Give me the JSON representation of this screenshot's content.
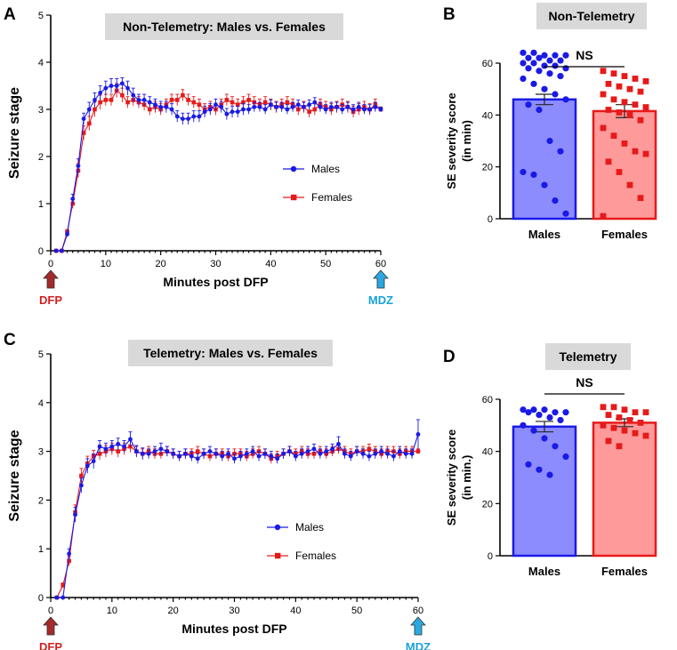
{
  "colors": {
    "males": "#1a1ae6",
    "females": "#e61a1a",
    "males_bar_fill": "#8c8cff",
    "females_bar_fill": "#ff9a9a",
    "dfp_arrow": "#a52a2a",
    "mdz_arrow": "#29a9e0",
    "dfp_text": "#d0211f",
    "mdz_text": "#1aa3d9"
  },
  "chart_data": [
    {
      "panel": "A",
      "type": "line",
      "title": "Non-Telemetry: Males vs. Females",
      "xlabel": "Minutes post DFP",
      "ylabel": "Seizure stage",
      "xlim": [
        0,
        60
      ],
      "ylim": [
        0,
        5
      ],
      "xticks": [
        0,
        10,
        20,
        30,
        40,
        50,
        60
      ],
      "yticks": [
        0,
        1,
        2,
        3,
        4,
        5
      ],
      "legend": [
        "Males",
        "Females"
      ],
      "markers": {
        "start": "DFP",
        "end": "MDZ"
      },
      "series": [
        {
          "name": "Males",
          "x": [
            1,
            2,
            3,
            4,
            5,
            6,
            7,
            8,
            9,
            10,
            11,
            12,
            13,
            14,
            15,
            16,
            17,
            18,
            19,
            20,
            21,
            22,
            23,
            24,
            25,
            26,
            27,
            28,
            29,
            30,
            31,
            32,
            33,
            34,
            35,
            36,
            37,
            38,
            39,
            40,
            41,
            42,
            43,
            44,
            45,
            46,
            47,
            48,
            49,
            50,
            51,
            52,
            53,
            54,
            55,
            56,
            57,
            58,
            59,
            60
          ],
          "values": [
            0,
            0,
            0.35,
            1.1,
            1.8,
            2.8,
            3.0,
            3.2,
            3.35,
            3.45,
            3.5,
            3.5,
            3.55,
            3.45,
            3.3,
            3.2,
            3.2,
            3.15,
            3.1,
            3.05,
            3.05,
            3.0,
            2.85,
            2.8,
            2.8,
            2.85,
            2.85,
            2.95,
            3.0,
            3.1,
            3.05,
            2.9,
            2.95,
            2.95,
            3.0,
            3.0,
            3.05,
            3.05,
            3.0,
            3.1,
            3.05,
            3.05,
            3.0,
            3.05,
            3.1,
            3.05,
            3.1,
            3.15,
            3.05,
            3.0,
            3.05,
            3.05,
            3.0,
            3.05,
            3.0,
            3.05,
            3.0,
            3.0,
            3.05,
            3.0
          ],
          "errors": [
            0,
            0,
            0.05,
            0.1,
            0.15,
            0.12,
            0.15,
            0.15,
            0.15,
            0.15,
            0.15,
            0.15,
            0.12,
            0.15,
            0.15,
            0.12,
            0.12,
            0.12,
            0.12,
            0.12,
            0.12,
            0.12,
            0.12,
            0.12,
            0.12,
            0.12,
            0.12,
            0.12,
            0.12,
            0.12,
            0.12,
            0.12,
            0.12,
            0.12,
            0.12,
            0.1,
            0.1,
            0.1,
            0.1,
            0.1,
            0.1,
            0.1,
            0.1,
            0.1,
            0.1,
            0.1,
            0.1,
            0.1,
            0.1,
            0.1,
            0.1,
            0.1,
            0.1,
            0.1,
            0.1,
            0.1,
            0.1,
            0.1,
            0.1,
            0.05
          ]
        },
        {
          "name": "Females",
          "x": [
            1,
            2,
            3,
            4,
            5,
            6,
            7,
            8,
            9,
            10,
            11,
            12,
            13,
            14,
            15,
            16,
            17,
            18,
            19,
            20,
            21,
            22,
            23,
            24,
            25,
            26,
            27,
            28,
            29,
            30,
            31,
            32,
            33,
            34,
            35,
            36,
            37,
            38,
            39,
            40,
            41,
            42,
            43,
            44,
            45,
            46,
            47,
            48,
            49,
            50,
            51,
            52,
            53,
            54,
            55,
            56,
            57,
            58,
            59,
            60
          ],
          "values": [
            0,
            0,
            0.4,
            1.0,
            1.7,
            2.5,
            2.7,
            3.0,
            3.15,
            3.2,
            3.2,
            3.4,
            3.3,
            3.15,
            3.2,
            3.15,
            3.1,
            3.0,
            3.05,
            3.0,
            3.1,
            3.2,
            3.2,
            3.3,
            3.2,
            3.15,
            3.1,
            3.0,
            3.05,
            3.0,
            3.1,
            3.2,
            3.15,
            3.1,
            3.15,
            3.2,
            3.15,
            3.1,
            3.15,
            3.1,
            3.05,
            3.1,
            3.15,
            3.1,
            3.0,
            3.05,
            2.95,
            3.0,
            3.1,
            3.05,
            3.0,
            3.05,
            3.1,
            3.05,
            2.95,
            3.0,
            3.05,
            3.0,
            3.1,
            3.0
          ],
          "errors": [
            0,
            0,
            0.05,
            0.1,
            0.15,
            0.15,
            0.15,
            0.15,
            0.15,
            0.12,
            0.12,
            0.15,
            0.15,
            0.12,
            0.12,
            0.12,
            0.12,
            0.12,
            0.12,
            0.12,
            0.12,
            0.12,
            0.12,
            0.12,
            0.12,
            0.12,
            0.12,
            0.12,
            0.12,
            0.12,
            0.12,
            0.12,
            0.12,
            0.12,
            0.12,
            0.12,
            0.12,
            0.12,
            0.12,
            0.12,
            0.12,
            0.12,
            0.12,
            0.12,
            0.12,
            0.12,
            0.12,
            0.12,
            0.12,
            0.12,
            0.12,
            0.12,
            0.12,
            0.12,
            0.12,
            0.12,
            0.12,
            0.12,
            0.12,
            0.05
          ]
        }
      ]
    },
    {
      "panel": "B",
      "type": "bar",
      "title": "Non-Telemetry",
      "ylabel": "SE severity score\n(in min)",
      "ylim": [
        0,
        60
      ],
      "yticks": [
        0,
        20,
        40,
        60
      ],
      "categories": [
        "Males",
        "Females"
      ],
      "values": [
        46,
        41.5
      ],
      "errors": [
        2,
        2.5
      ],
      "annotation": "NS",
      "points": [
        [
          64,
          64,
          63,
          63,
          63,
          62,
          62,
          61,
          61,
          60,
          60,
          59,
          59,
          58,
          58,
          57,
          56,
          55,
          54,
          52,
          50,
          48,
          46,
          44,
          42,
          30,
          26,
          18,
          17,
          13,
          7,
          2
        ],
        [
          57,
          56,
          55,
          54,
          53,
          52,
          51,
          50,
          49,
          48,
          46,
          45,
          44,
          43,
          42,
          41,
          40,
          38,
          35,
          32,
          29,
          26,
          25,
          22,
          18,
          13,
          8,
          1
        ]
      ]
    },
    {
      "panel": "C",
      "type": "line",
      "title": "Telemetry: Males vs. Females",
      "xlabel": "Minutes post DFP",
      "ylabel": "Seizure stage",
      "xlim": [
        0,
        60
      ],
      "ylim": [
        0,
        5
      ],
      "xticks": [
        0,
        10,
        20,
        30,
        40,
        50,
        60
      ],
      "yticks": [
        0,
        1,
        2,
        3,
        4,
        5
      ],
      "legend": [
        "Males",
        "Females"
      ],
      "markers": {
        "start": "DFP",
        "end": "MDZ"
      },
      "series": [
        {
          "name": "Males",
          "x": [
            1,
            2,
            3,
            4,
            5,
            6,
            7,
            8,
            9,
            10,
            11,
            12,
            13,
            14,
            15,
            16,
            17,
            18,
            19,
            20,
            21,
            22,
            23,
            24,
            25,
            26,
            27,
            28,
            29,
            30,
            31,
            32,
            33,
            34,
            35,
            36,
            37,
            38,
            39,
            40,
            41,
            42,
            43,
            44,
            45,
            46,
            47,
            48,
            49,
            50,
            51,
            52,
            53,
            54,
            55,
            56,
            57,
            58,
            59,
            60
          ],
          "values": [
            0,
            0,
            0.9,
            1.7,
            2.3,
            2.7,
            2.8,
            3.1,
            3.05,
            3.1,
            3.15,
            3.1,
            3.25,
            3.0,
            2.95,
            2.95,
            3.0,
            3.05,
            3.0,
            2.95,
            2.9,
            2.95,
            2.9,
            2.85,
            2.95,
            3.0,
            2.95,
            2.9,
            2.95,
            2.85,
            2.9,
            2.95,
            3.0,
            2.9,
            2.95,
            2.9,
            2.85,
            2.95,
            3.0,
            2.9,
            2.95,
            3.0,
            3.05,
            2.95,
            3.0,
            3.05,
            3.15,
            2.95,
            2.9,
            3.0,
            2.95,
            2.9,
            2.95,
            3.0,
            2.95,
            2.9,
            3.0,
            2.95,
            2.95,
            3.35
          ],
          "errors": [
            0,
            0,
            0.1,
            0.15,
            0.15,
            0.15,
            0.15,
            0.12,
            0.12,
            0.12,
            0.12,
            0.12,
            0.15,
            0.12,
            0.12,
            0.1,
            0.1,
            0.12,
            0.1,
            0.1,
            0.1,
            0.1,
            0.1,
            0.1,
            0.1,
            0.1,
            0.1,
            0.1,
            0.1,
            0.1,
            0.1,
            0.1,
            0.1,
            0.1,
            0.1,
            0.1,
            0.1,
            0.1,
            0.1,
            0.1,
            0.1,
            0.1,
            0.1,
            0.1,
            0.1,
            0.1,
            0.15,
            0.1,
            0.1,
            0.1,
            0.1,
            0.1,
            0.1,
            0.1,
            0.1,
            0.1,
            0.1,
            0.1,
            0.1,
            0.3
          ]
        },
        {
          "name": "Females",
          "x": [
            1,
            2,
            3,
            4,
            5,
            6,
            7,
            8,
            9,
            10,
            11,
            12,
            13,
            14,
            15,
            16,
            17,
            18,
            19,
            20,
            21,
            22,
            23,
            24,
            25,
            26,
            27,
            28,
            29,
            30,
            31,
            32,
            33,
            34,
            35,
            36,
            37,
            38,
            39,
            40,
            41,
            42,
            43,
            44,
            45,
            46,
            47,
            48,
            49,
            50,
            51,
            52,
            53,
            54,
            55,
            56,
            57,
            58,
            59,
            60
          ],
          "values": [
            0,
            0.25,
            0.75,
            1.75,
            2.5,
            2.75,
            2.9,
            2.95,
            3.0,
            3.05,
            3.0,
            3.05,
            3.1,
            3.0,
            2.95,
            3.0,
            2.95,
            2.95,
            3.0,
            2.95,
            2.9,
            2.95,
            2.95,
            3.0,
            2.95,
            2.9,
            2.95,
            2.95,
            2.9,
            2.95,
            2.95,
            2.9,
            2.95,
            3.0,
            2.95,
            2.85,
            2.9,
            2.95,
            3.0,
            2.95,
            3.0,
            2.95,
            2.95,
            3.0,
            2.95,
            3.0,
            3.05,
            3.0,
            2.95,
            3.0,
            3.0,
            3.05,
            3.0,
            2.95,
            3.0,
            3.0,
            2.95,
            3.0,
            3.0,
            3.0
          ],
          "errors": [
            0,
            0.05,
            0.1,
            0.15,
            0.15,
            0.15,
            0.12,
            0.12,
            0.12,
            0.12,
            0.12,
            0.12,
            0.12,
            0.1,
            0.1,
            0.1,
            0.1,
            0.1,
            0.1,
            0.1,
            0.1,
            0.1,
            0.1,
            0.1,
            0.1,
            0.1,
            0.1,
            0.1,
            0.1,
            0.1,
            0.1,
            0.1,
            0.1,
            0.1,
            0.1,
            0.1,
            0.1,
            0.1,
            0.1,
            0.1,
            0.1,
            0.1,
            0.1,
            0.1,
            0.1,
            0.1,
            0.1,
            0.1,
            0.1,
            0.1,
            0.1,
            0.1,
            0.1,
            0.1,
            0.1,
            0.1,
            0.1,
            0.1,
            0.1,
            0.05
          ]
        }
      ]
    },
    {
      "panel": "D",
      "type": "bar",
      "title": "Telemetry",
      "ylabel": "SE severity score\n(in min.)",
      "ylim": [
        0,
        60
      ],
      "yticks": [
        0,
        20,
        40,
        60
      ],
      "categories": [
        "Males",
        "Females"
      ],
      "values": [
        49.5,
        51
      ],
      "errors": [
        2,
        1.5
      ],
      "annotation": "NS",
      "points": [
        [
          56,
          56,
          56,
          55,
          55,
          55,
          54,
          53,
          52,
          50,
          48,
          45,
          42,
          38,
          35,
          33,
          31
        ],
        [
          57,
          57,
          56,
          55,
          55,
          54,
          53,
          52,
          51,
          50,
          49,
          48,
          47,
          46,
          44,
          42
        ]
      ]
    }
  ]
}
